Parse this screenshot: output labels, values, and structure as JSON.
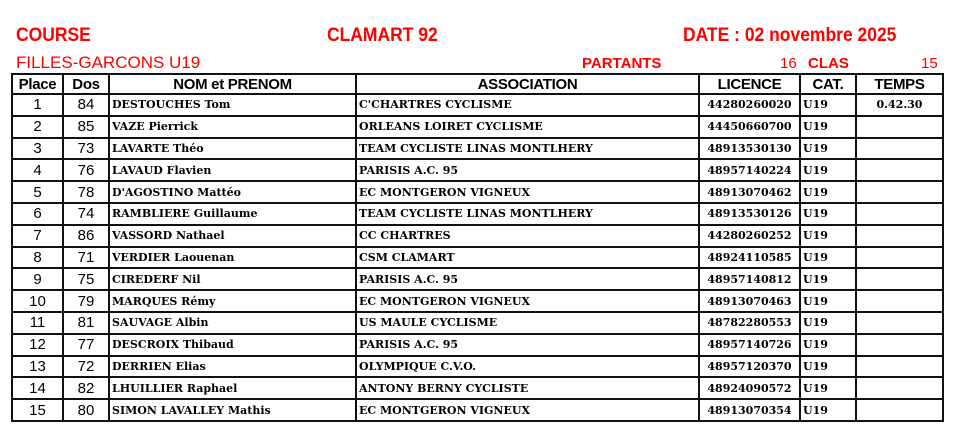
{
  "header": {
    "course": "COURSE",
    "location": "CLAMART  92",
    "date": "DATE :  02 novembre 2025",
    "category": "FILLES-GARCONS U19",
    "partants_label": "PARTANTS",
    "partants": "16",
    "clas_label": "CLAS",
    "clas": "15"
  },
  "table": {
    "columns": [
      "Place",
      "Dos",
      "NOM et PRENOM",
      "ASSOCIATION",
      "LICENCE",
      "CAT.",
      "TEMPS"
    ],
    "rows": [
      {
        "place": "1",
        "dos": "84",
        "name": "DESTOUCHES   Tom",
        "assoc": "C'CHARTRES CYCLISME",
        "licence": "44280260020",
        "cat": "U19",
        "temps": "0.42.30"
      },
      {
        "place": "2",
        "dos": "85",
        "name": "VAZE   Pierrick",
        "assoc": "ORLEANS LOIRET CYCLISME",
        "licence": "44450660700",
        "cat": "U19",
        "temps": ""
      },
      {
        "place": "3",
        "dos": "73",
        "name": "LAVARTE   Théo",
        "assoc": "TEAM CYCLISTE LINAS MONTLHERY",
        "licence": "48913530130",
        "cat": "U19",
        "temps": ""
      },
      {
        "place": "4",
        "dos": "76",
        "name": "LAVAUD   Flavien",
        "assoc": "PARISIS A.C. 95",
        "licence": "48957140224",
        "cat": "U19",
        "temps": ""
      },
      {
        "place": "5",
        "dos": "78",
        "name": "D'AGOSTINO   Mattéo",
        "assoc": "EC MONTGERON VIGNEUX",
        "licence": "48913070462",
        "cat": "U19",
        "temps": ""
      },
      {
        "place": "6",
        "dos": "74",
        "name": "RAMBLIERE   Guillaume",
        "assoc": "TEAM CYCLISTE LINAS MONTLHERY",
        "licence": "48913530126",
        "cat": "U19",
        "temps": ""
      },
      {
        "place": "7",
        "dos": "86",
        "name": "VASSORD   Nathael",
        "assoc": "CC CHARTRES",
        "licence": "44280260252",
        "cat": "U19",
        "temps": ""
      },
      {
        "place": "8",
        "dos": "71",
        "name": "VERDIER   Laouenan",
        "assoc": "CSM CLAMART",
        "licence": "48924110585",
        "cat": "U19",
        "temps": ""
      },
      {
        "place": "9",
        "dos": "75",
        "name": "CIREDERF   Nil",
        "assoc": "PARISIS A.C. 95",
        "licence": "48957140812",
        "cat": "U19",
        "temps": ""
      },
      {
        "place": "10",
        "dos": "79",
        "name": "MARQUES   Rémy",
        "assoc": "EC MONTGERON VIGNEUX",
        "licence": "48913070463",
        "cat": "U19",
        "temps": ""
      },
      {
        "place": "11",
        "dos": "81",
        "name": "SAUVAGE   Albin",
        "assoc": "US MAULE CYCLISME",
        "licence": "48782280553",
        "cat": "U19",
        "temps": ""
      },
      {
        "place": "12",
        "dos": "77",
        "name": "DESCROIX   Thibaud",
        "assoc": "PARISIS A.C. 95",
        "licence": "48957140726",
        "cat": "U19",
        "temps": ""
      },
      {
        "place": "13",
        "dos": "72",
        "name": "DERRIEN   Elias",
        "assoc": "OLYMPIQUE C.V.O.",
        "licence": "48957120370",
        "cat": "U19",
        "temps": ""
      },
      {
        "place": "14",
        "dos": "82",
        "name": "LHUILLIER   Raphael",
        "assoc": "ANTONY BERNY CYCLISTE",
        "licence": "48924090572",
        "cat": "U19",
        "temps": ""
      },
      {
        "place": "15",
        "dos": "80",
        "name": "SIMON LAVALLEY   Mathis",
        "assoc": "EC MONTGERON VIGNEUX",
        "licence": "48913070354",
        "cat": "U19",
        "temps": ""
      }
    ]
  }
}
